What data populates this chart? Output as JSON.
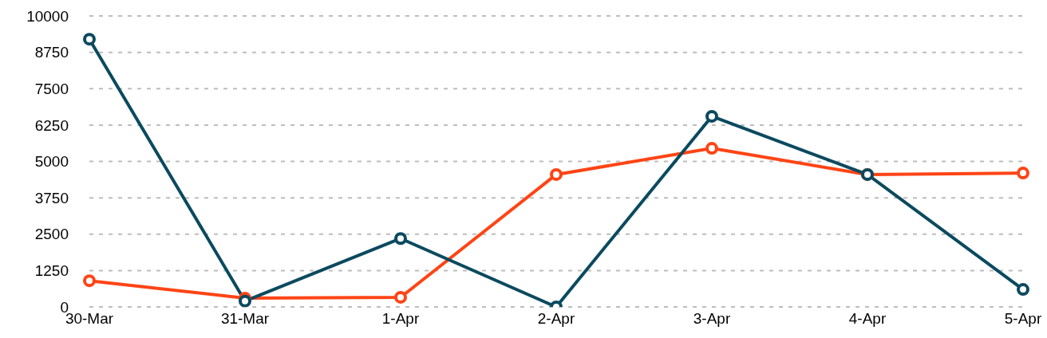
{
  "chart_data": {
    "type": "line",
    "categories": [
      "30-Mar",
      "31-Mar",
      "1-Apr",
      "2-Apr",
      "3-Apr",
      "4-Apr",
      "5-Apr"
    ],
    "series": [
      {
        "color": "#ff4415",
        "values": [
          900,
          300,
          330,
          4550,
          5450,
          4550,
          4600
        ]
      },
      {
        "color": "#0b4a5f",
        "values": [
          9200,
          200,
          2350,
          0,
          6550,
          4550,
          600
        ]
      }
    ],
    "ylim": [
      0,
      10000
    ],
    "yticks": [
      0,
      1250,
      2500,
      3750,
      5000,
      6250,
      7500,
      8750,
      10000
    ],
    "grid": "y",
    "marker": "circle",
    "line_style": "solid"
  }
}
